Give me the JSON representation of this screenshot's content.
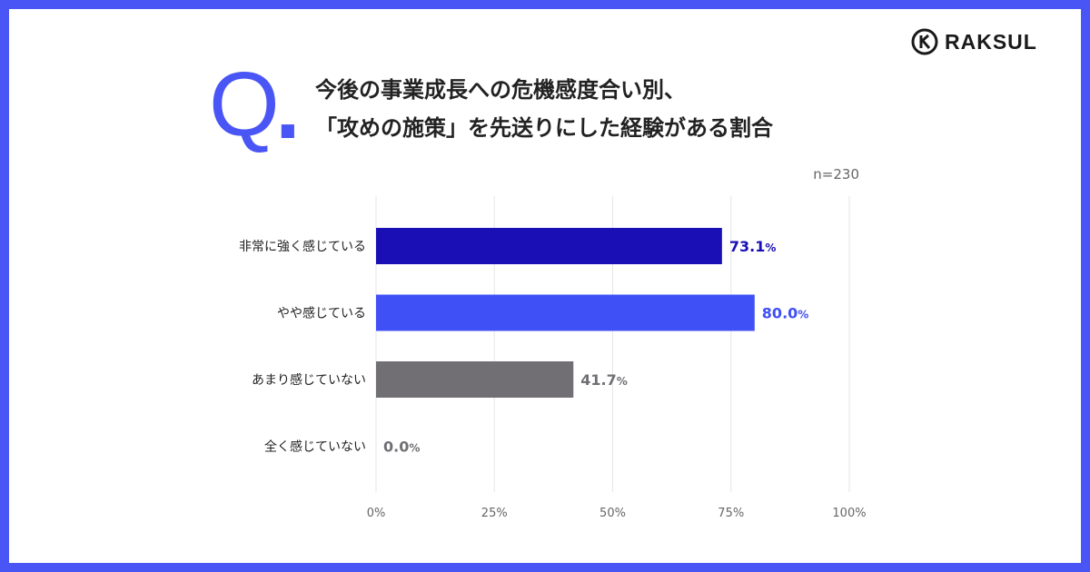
{
  "brand": {
    "name": "RAKSUL"
  },
  "question_mark": "Q",
  "question_dot": ".",
  "title_lines": [
    "今後の事業成長への危機感度合い別、",
    "「攻めの施策」を先送りにした経験がある割合"
  ],
  "sample_note": "n=230",
  "colors": {
    "frame": "#4a55f5",
    "accent": "#4a55f5",
    "bar_dark": "#1a0fb5",
    "bar_blue": "#4050f7",
    "bar_gray": "#716f74",
    "grid": "#e6e6ea"
  },
  "chart_data": {
    "type": "bar",
    "orientation": "horizontal",
    "title": "今後の事業成長への危機感度合い別、「攻めの施策」を先送りにした経験がある割合",
    "categories": [
      "非常に強く感じている",
      "やや感じている",
      "あまり感じていない",
      "全く感じていない"
    ],
    "values": [
      73.1,
      80.0,
      41.7,
      0.0
    ],
    "value_labels": [
      "73.1",
      "80.0",
      "41.7",
      "0.0"
    ],
    "value_suffix": "%",
    "bar_colors": [
      "#1a0fb5",
      "#4050f7",
      "#716f74",
      "#716f74"
    ],
    "label_colors": [
      "#1a0fb5",
      "#4050f7",
      "#716f74",
      "#716f74"
    ],
    "x_ticks": [
      0,
      25,
      50,
      75,
      100
    ],
    "x_tick_labels": [
      "0%",
      "25%",
      "50%",
      "75%",
      "100%"
    ],
    "xlim": [
      0,
      100
    ],
    "grid": true,
    "xlabel": "",
    "ylabel": ""
  }
}
